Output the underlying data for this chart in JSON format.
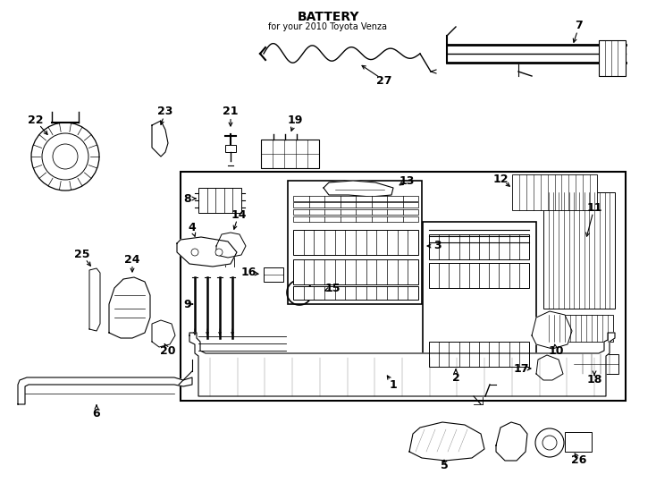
{
  "title": "BATTERY",
  "subtitle": "for your 2010 Toyota Venza",
  "bg": "#ffffff",
  "lc": "#000000",
  "fig_w": 7.34,
  "fig_h": 5.4,
  "dpi": 100
}
